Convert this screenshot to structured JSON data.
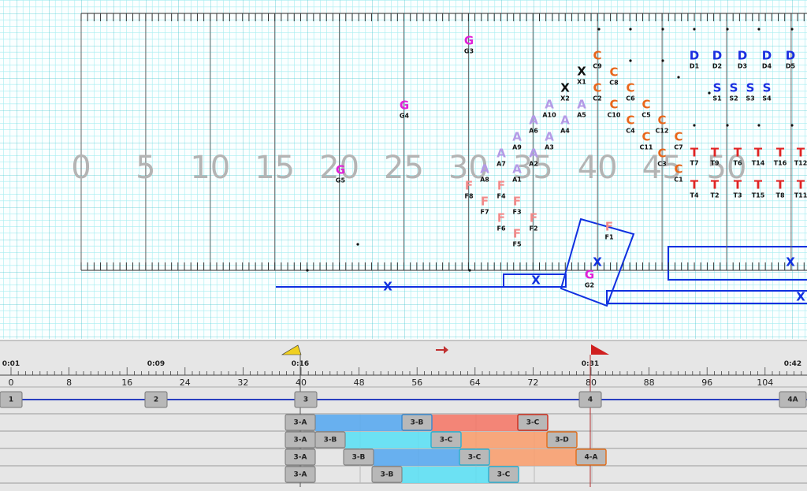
{
  "field": {
    "yard_numbers": [
      "0",
      "5",
      "10",
      "15",
      "20",
      "25",
      "30",
      "35",
      "40",
      "45",
      "50"
    ],
    "performers": [
      {
        "symbol": "G",
        "label": "G3"
      },
      {
        "symbol": "G",
        "label": "G4"
      },
      {
        "symbol": "G",
        "label": "G5"
      },
      {
        "symbol": "G",
        "label": "G2"
      },
      {
        "symbol": "X",
        "label": "X1"
      },
      {
        "symbol": "X",
        "label": "X2"
      },
      {
        "symbol": "C",
        "label": "C9"
      },
      {
        "symbol": "C",
        "label": "C8"
      },
      {
        "symbol": "C",
        "label": "C2"
      },
      {
        "symbol": "C",
        "label": "C6"
      },
      {
        "symbol": "C",
        "label": "C10"
      },
      {
        "symbol": "C",
        "label": "C5"
      },
      {
        "symbol": "C",
        "label": "C4"
      },
      {
        "symbol": "C",
        "label": "C12"
      },
      {
        "symbol": "C",
        "label": "C11"
      },
      {
        "symbol": "C",
        "label": "C7"
      },
      {
        "symbol": "C",
        "label": "C3"
      },
      {
        "symbol": "C",
        "label": "C1"
      },
      {
        "symbol": "A",
        "label": "A10"
      },
      {
        "symbol": "A",
        "label": "A5"
      },
      {
        "symbol": "A",
        "label": "A6"
      },
      {
        "symbol": "A",
        "label": "A4"
      },
      {
        "symbol": "A",
        "label": "A9"
      },
      {
        "symbol": "A",
        "label": "A3"
      },
      {
        "symbol": "A",
        "label": "A7"
      },
      {
        "symbol": "A",
        "label": "A2"
      },
      {
        "symbol": "A",
        "label": "A8"
      },
      {
        "symbol": "A",
        "label": "A1"
      },
      {
        "symbol": "F",
        "label": "F8"
      },
      {
        "symbol": "F",
        "label": "F4"
      },
      {
        "symbol": "F",
        "label": "F7"
      },
      {
        "symbol": "F",
        "label": "F3"
      },
      {
        "symbol": "F",
        "label": "F6"
      },
      {
        "symbol": "F",
        "label": "F2"
      },
      {
        "symbol": "F",
        "label": "F5"
      },
      {
        "symbol": "F",
        "label": "F1"
      },
      {
        "symbol": "D",
        "label": "D1"
      },
      {
        "symbol": "D",
        "label": "D2"
      },
      {
        "symbol": "D",
        "label": "D3"
      },
      {
        "symbol": "D",
        "label": "D4"
      },
      {
        "symbol": "D",
        "label": "D5"
      },
      {
        "symbol": "S",
        "label": "S1"
      },
      {
        "symbol": "S",
        "label": "S2"
      },
      {
        "symbol": "S",
        "label": "S3"
      },
      {
        "symbol": "S",
        "label": "S4"
      },
      {
        "symbol": "T",
        "label": "T7"
      },
      {
        "symbol": "T",
        "label": "T9"
      },
      {
        "symbol": "T",
        "label": "T6"
      },
      {
        "symbol": "T",
        "label": "T14"
      },
      {
        "symbol": "T",
        "label": "T16"
      },
      {
        "symbol": "T",
        "label": "T12"
      },
      {
        "symbol": "T",
        "label": "T4"
      },
      {
        "symbol": "T",
        "label": "T2"
      },
      {
        "symbol": "T",
        "label": "T3"
      },
      {
        "symbol": "T",
        "label": "T15"
      },
      {
        "symbol": "T",
        "label": "T8"
      },
      {
        "symbol": "T",
        "label": "T11"
      }
    ],
    "path_markers": [
      "X",
      "X",
      "X",
      "X",
      "X"
    ]
  },
  "timeline": {
    "times": [
      "0:01",
      "0:09",
      "0:16",
      "0:31",
      "0:42"
    ],
    "counts": [
      0,
      8,
      16,
      24,
      32,
      40,
      48,
      56,
      64,
      72,
      80,
      88,
      96,
      104
    ],
    "sets": [
      "1",
      "2",
      "3",
      "4",
      "4A"
    ],
    "rows": [
      [
        "3-A",
        "3-B",
        "3-C"
      ],
      [
        "3-A",
        "3-B",
        "3-C",
        "3-D"
      ],
      [
        "3-A",
        "3-B",
        "3-C",
        "4-A"
      ],
      [
        "3-A",
        "3-B",
        "3-C"
      ]
    ]
  }
}
